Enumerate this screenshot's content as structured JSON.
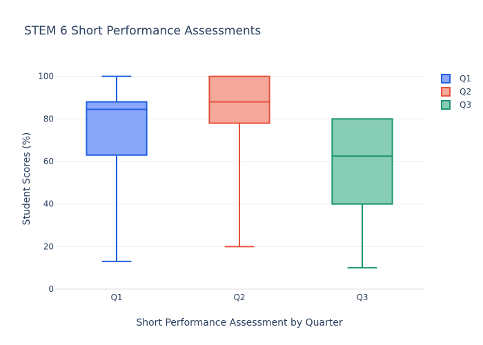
{
  "chart_data": {
    "type": "box",
    "title": "STEM 6 Short Performance Assessments",
    "xlabel": "Short Performance Assessment by Quarter",
    "ylabel": "Student Scores (%)",
    "categories": [
      "Q1",
      "Q2",
      "Q3"
    ],
    "ylim": [
      0,
      108
    ],
    "yticks": [
      0,
      20,
      40,
      60,
      80,
      100
    ],
    "grid": true,
    "legend_position": "top-right",
    "series": [
      {
        "name": "Q1",
        "category": "Q1",
        "min": 13,
        "q1": 63,
        "median": 84.5,
        "q3": 88,
        "max": 100,
        "line_color": "#1f5fe0",
        "fill_color": "#8aa7fa"
      },
      {
        "name": "Q2",
        "category": "Q2",
        "min": 20,
        "q1": 78,
        "median": 88,
        "q3": 100,
        "max": 100,
        "line_color": "#e5533c",
        "fill_color": "#f6a89a"
      },
      {
        "name": "Q3",
        "category": "Q3",
        "min": 10,
        "q1": 40,
        "median": 62.5,
        "q3": 80,
        "max": 80,
        "line_color": "#1a9470",
        "fill_color": "#88cdb5"
      }
    ]
  }
}
